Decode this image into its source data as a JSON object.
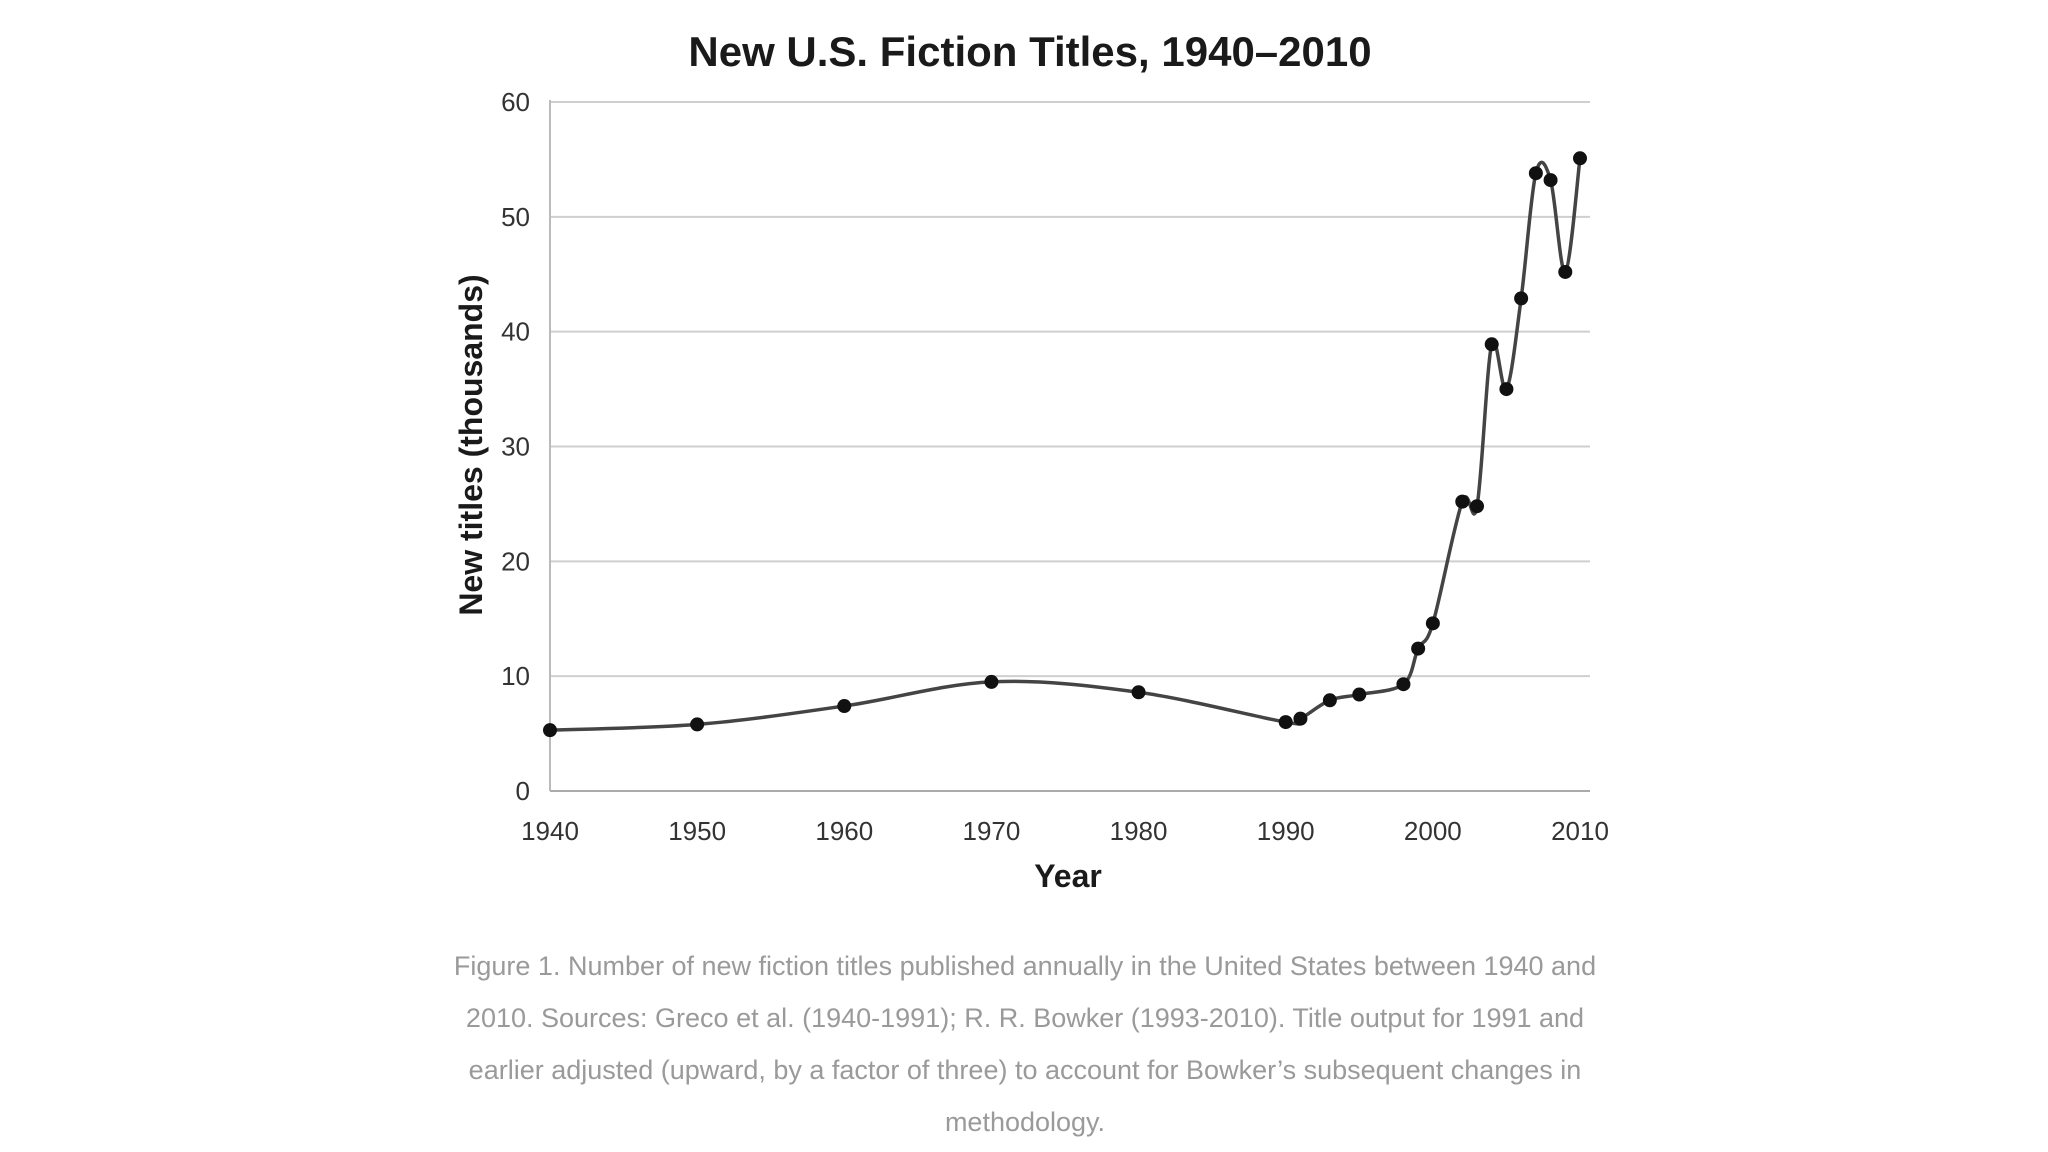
{
  "chart_data": {
    "type": "line",
    "title": "New U.S. Fiction Titles, 1940–2010",
    "xlabel": "Year",
    "ylabel": "New titles (thousands)",
    "xlim": [
      1940,
      2010
    ],
    "ylim": [
      0,
      60
    ],
    "x_ticks": [
      1940,
      1950,
      1960,
      1970,
      1980,
      1990,
      2000,
      2010
    ],
    "y_ticks": [
      0,
      10,
      20,
      30,
      40,
      50,
      60
    ],
    "grid": "horizontal",
    "legend": "none",
    "line_color": "#444444",
    "marker_color": "#111111",
    "series": [
      {
        "x": [
          1940,
          1950,
          1960,
          1970,
          1980,
          1990,
          1991,
          1993,
          1995,
          1998,
          1999,
          2000,
          2002,
          2003,
          2004,
          2005,
          2006,
          2007,
          2008,
          2009,
          2010
        ],
        "y": [
          5.3,
          5.8,
          7.4,
          9.5,
          8.6,
          6.0,
          6.3,
          7.9,
          8.4,
          9.3,
          12.4,
          14.6,
          25.2,
          24.8,
          38.9,
          35.0,
          42.9,
          53.8,
          53.2,
          45.2,
          55.1
        ]
      }
    ]
  },
  "caption": "Figure 1. Number of new fiction titles published annually in the United States between 1940 and 2010. Sources: Greco et al. (1940-1991); R. R. Bowker (1993-2010). Title output for 1991 and earlier adjusted (upward, by a factor of three) to account for Bowker’s subsequent changes in methodology."
}
